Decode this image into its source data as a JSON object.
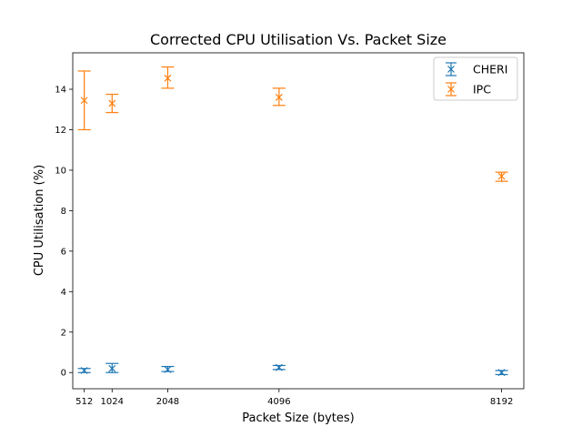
{
  "chart_data": {
    "type": "scatter",
    "title": "Corrected CPU Utilisation Vs. Packet Size",
    "xlabel": "Packet Size (bytes)",
    "ylabel": "CPU Utilisation (%)",
    "x": [
      512,
      1024,
      2048,
      4096,
      8192
    ],
    "x_tick_labels": [
      "512",
      "1024",
      "2048",
      "4096",
      "8192"
    ],
    "xlim": [
      300,
      8600
    ],
    "ylim": [
      -0.8,
      15.8
    ],
    "y_ticks": [
      0,
      2,
      4,
      6,
      8,
      10,
      12,
      14
    ],
    "y_tick_labels": [
      "0",
      "2",
      "4",
      "6",
      "8",
      "10",
      "12",
      "14"
    ],
    "grid": false,
    "legend_position": "top-right",
    "marker": "x",
    "error_bars": true,
    "series": [
      {
        "name": "CHERI",
        "color": "#1f77b4",
        "values": [
          0.1,
          0.2,
          0.15,
          0.25,
          0.0
        ],
        "error_low": [
          0.0,
          0.0,
          0.05,
          0.15,
          -0.1
        ],
        "error_high": [
          0.2,
          0.45,
          0.3,
          0.35,
          0.1
        ]
      },
      {
        "name": "IPC",
        "color": "#ff7f0e",
        "values": [
          13.45,
          13.3,
          14.55,
          13.6,
          9.7
        ],
        "error_low": [
          12.0,
          12.85,
          14.05,
          13.2,
          9.45
        ],
        "error_high": [
          14.9,
          13.75,
          15.1,
          14.05,
          9.9
        ]
      }
    ]
  }
}
